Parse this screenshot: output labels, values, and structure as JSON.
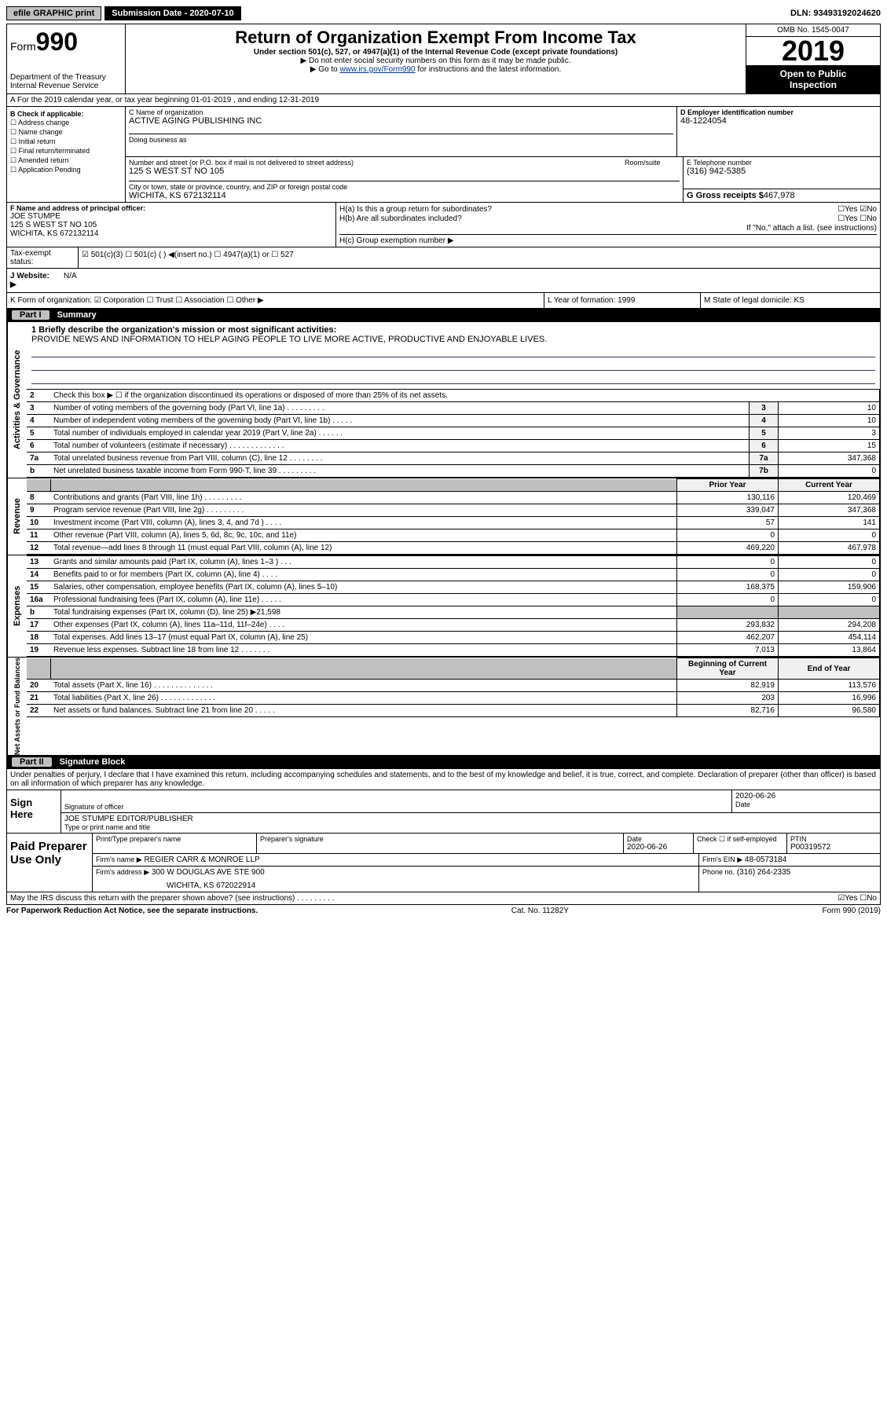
{
  "topbar": {
    "efile": "efile GRAPHIC print",
    "submission": "Submission Date - 2020-07-10",
    "dln": "DLN: 93493192024620"
  },
  "header": {
    "form_prefix": "Form",
    "form_number": "990",
    "dept1": "Department of the Treasury",
    "dept2": "Internal Revenue Service",
    "title": "Return of Organization Exempt From Income Tax",
    "subtitle": "Under section 501(c), 527, or 4947(a)(1) of the Internal Revenue Code (except private foundations)",
    "note1": "▶ Do not enter social security numbers on this form as it may be made public.",
    "note2_pre": "▶ Go to ",
    "note2_link": "www.irs.gov/Form990",
    "note2_post": " for instructions and the latest information.",
    "omb": "OMB No. 1545-0047",
    "year": "2019",
    "inspect1": "Open to Public",
    "inspect2": "Inspection"
  },
  "rowA": "A For the 2019 calendar year, or tax year beginning 01-01-2019     , and ending 12-31-2019",
  "boxB": {
    "label": "B Check if applicable:",
    "opts": [
      "☐ Address change",
      "☐ Name change",
      "☐ Initial return",
      "☐ Final return/terminated",
      "☐ Amended return",
      "☐ Application Pending"
    ]
  },
  "boxC": {
    "label_name": "C Name of organization",
    "name": "ACTIVE AGING PUBLISHING INC",
    "dba_label": "Doing business as",
    "addr_label": "Number and street (or P.O. box if mail is not delivered to street address)",
    "room_label": "Room/suite",
    "addr": "125 S WEST ST NO 105",
    "city_label": "City or town, state or province, country, and ZIP or foreign postal code",
    "city": "WICHITA, KS  672132114"
  },
  "boxD": {
    "label": "D Employer identification number",
    "value": "48-1224054"
  },
  "boxE": {
    "label": "E Telephone number",
    "value": "(316) 942-5385"
  },
  "boxG": {
    "label": "G Gross receipts $",
    "value": "467,978"
  },
  "boxF": {
    "label": "F  Name and address of principal officer:",
    "name": "JOE STUMPE",
    "addr1": "125 S WEST ST NO 105",
    "addr2": "WICHITA, KS  672132114"
  },
  "boxH": {
    "ha": "H(a)  Is this a group return for subordinates?",
    "ha_ans": "☐Yes ☑No",
    "hb": "H(b)  Are all subordinates included?",
    "hb_ans": "☐Yes ☐No",
    "hb_note": "If \"No,\" attach a list. (see instructions)",
    "hc": "H(c)  Group exemption number ▶"
  },
  "boxI": {
    "label": "Tax-exempt status:",
    "opts": "☑ 501(c)(3)   ☐ 501(c) (  ) ◀(insert no.)   ☐ 4947(a)(1) or   ☐ 527"
  },
  "boxJ": {
    "label": "J   Website: ▶",
    "value": "N/A"
  },
  "boxK": {
    "label": "K Form of organization:  ☑ Corporation  ☐ Trust  ☐ Association  ☐ Other ▶",
    "L": "L Year of formation: 1999",
    "M": "M State of legal domicile: KS"
  },
  "partI": {
    "label": "Part I",
    "title": "Summary"
  },
  "brief": {
    "label": "1  Briefly describe the organization's mission or most significant activities:",
    "text": "PROVIDE NEWS AND INFORMATION TO HELP AGING PEOPLE TO LIVE MORE ACTIVE, PRODUCTIVE AND ENJOYABLE LIVES."
  },
  "govLines": [
    {
      "n": "2",
      "d": "Check this box ▶ ☐  if the organization discontinued its operations or disposed of more than 25% of its net assets.",
      "col": "",
      "v": ""
    },
    {
      "n": "3",
      "d": "Number of voting members of the governing body (Part VI, line 1a)   .    .    .    .    .    .    .    .    .",
      "col": "3",
      "v": "10"
    },
    {
      "n": "4",
      "d": "Number of independent voting members of the governing body (Part VI, line 1b)   .    .    .    .    .",
      "col": "4",
      "v": "10"
    },
    {
      "n": "5",
      "d": "Total number of individuals employed in calendar year 2019 (Part V, line 2a)   .    .    .    .    .    .",
      "col": "5",
      "v": "3"
    },
    {
      "n": "6",
      "d": "Total number of volunteers (estimate if necessary)   .    .    .    .    .    .    .    .    .    .    .    .    .",
      "col": "6",
      "v": "15"
    },
    {
      "n": "7a",
      "d": "Total unrelated business revenue from Part VIII, column (C), line 12   .    .    .    .    .    .    .    .",
      "col": "7a",
      "v": "347,368"
    },
    {
      "n": "b",
      "d": "Net unrelated business taxable income from Form 990-T, line 39   .    .    .    .    .    .    .    .    .",
      "col": "7b",
      "v": "0"
    }
  ],
  "revHead": {
    "prior": "Prior Year",
    "curr": "Current Year"
  },
  "revLines": [
    {
      "n": "8",
      "d": "Contributions and grants (Part VIII, line 1h)   .    .    .    .    .    .    .    .    .",
      "p": "130,116",
      "c": "120,469"
    },
    {
      "n": "9",
      "d": "Program service revenue (Part VIII, line 2g)   .    .    .    .    .    .    .    .    .",
      "p": "339,047",
      "c": "347,368"
    },
    {
      "n": "10",
      "d": "Investment income (Part VIII, column (A), lines 3, 4, and 7d )   .    .    .    .",
      "p": "57",
      "c": "141"
    },
    {
      "n": "11",
      "d": "Other revenue (Part VIII, column (A), lines 5, 6d, 8c, 9c, 10c, and 11e)",
      "p": "0",
      "c": "0"
    },
    {
      "n": "12",
      "d": "Total revenue—add lines 8 through 11 (must equal Part VIII, column (A), line 12)",
      "p": "469,220",
      "c": "467,978"
    }
  ],
  "expLines": [
    {
      "n": "13",
      "d": "Grants and similar amounts paid (Part IX, column (A), lines 1–3 )   .    .    .",
      "p": "0",
      "c": "0"
    },
    {
      "n": "14",
      "d": "Benefits paid to or for members (Part IX, column (A), line 4)   .    .    .    .",
      "p": "0",
      "c": "0"
    },
    {
      "n": "15",
      "d": "Salaries, other compensation, employee benefits (Part IX, column (A), lines 5–10)",
      "p": "168,375",
      "c": "159,906"
    },
    {
      "n": "16a",
      "d": "Professional fundraising fees (Part IX, column (A), line 11e)   .    .    .    .    .",
      "p": "0",
      "c": "0"
    },
    {
      "n": "b",
      "d": "Total fundraising expenses (Part IX, column (D), line 25) ▶21,598",
      "p": "",
      "c": "",
      "gray": true
    },
    {
      "n": "17",
      "d": "Other expenses (Part IX, column (A), lines 11a–11d, 11f–24e)   .    .    .    .",
      "p": "293,832",
      "c": "294,208"
    },
    {
      "n": "18",
      "d": "Total expenses. Add lines 13–17 (must equal Part IX, column (A), line 25)",
      "p": "462,207",
      "c": "454,114"
    },
    {
      "n": "19",
      "d": "Revenue less expenses. Subtract line 18 from line 12   .    .    .    .    .    .    .",
      "p": "7,013",
      "c": "13,864"
    }
  ],
  "naHead": {
    "beg": "Beginning of Current Year",
    "end": "End of Year"
  },
  "naLines": [
    {
      "n": "20",
      "d": "Total assets (Part X, line 16)   .    .    .    .    .    .    .    .    .    .    .    .    .    .",
      "p": "82,919",
      "c": "113,576"
    },
    {
      "n": "21",
      "d": "Total liabilities (Part X, line 26)   .    .    .    .    .    .    .    .    .    .    .    .    .",
      "p": "203",
      "c": "16,996"
    },
    {
      "n": "22",
      "d": "Net assets or fund balances. Subtract line 21 from line 20   .    .    .    .    .",
      "p": "82,716",
      "c": "96,580"
    }
  ],
  "vtabs": {
    "gov": "Activities & Governance",
    "rev": "Revenue",
    "exp": "Expenses",
    "na": "Net Assets or Fund Balances"
  },
  "partII": {
    "label": "Part II",
    "title": "Signature Block"
  },
  "penalty": "Under penalties of perjury, I declare that I have examined this return, including accompanying schedules and statements, and to the best of my knowledge and belief, it is true, correct, and complete. Declaration of preparer (other than officer) is based on all information of which preparer has any knowledge.",
  "sign": {
    "here": "Sign Here",
    "sig_label": "Signature of officer",
    "date": "2020-06-26",
    "date_label": "Date",
    "name": "JOE STUMPE  EDITOR/PUBLISHER",
    "name_label": "Type or print name and title"
  },
  "paid": {
    "label": "Paid Preparer Use Only",
    "h1": "Print/Type preparer's name",
    "h2": "Preparer's signature",
    "h3": "Date",
    "h3v": "2020-06-26",
    "h4": "Check ☐ if self-employed",
    "h5": "PTIN",
    "h5v": "P00319572",
    "firm_label": "Firm's name    ▶",
    "firm": "REGIER CARR & MONROE LLP",
    "ein_label": "Firm's EIN ▶",
    "ein": "48-0573184",
    "addr_label": "Firm's address ▶",
    "addr1": "300 W DOUGLAS AVE STE 900",
    "addr2": "WICHITA, KS  672022914",
    "phone_label": "Phone no.",
    "phone": "(316) 264-2335"
  },
  "discuss": {
    "text": "May the IRS discuss this return with the preparer shown above? (see instructions)   .    .    .    .    .    .    .    .    .",
    "ans": "☑Yes  ☐No"
  },
  "footer": {
    "left": "For Paperwork Reduction Act Notice, see the separate instructions.",
    "mid": "Cat. No. 11282Y",
    "right": "Form 990 (2019)"
  }
}
